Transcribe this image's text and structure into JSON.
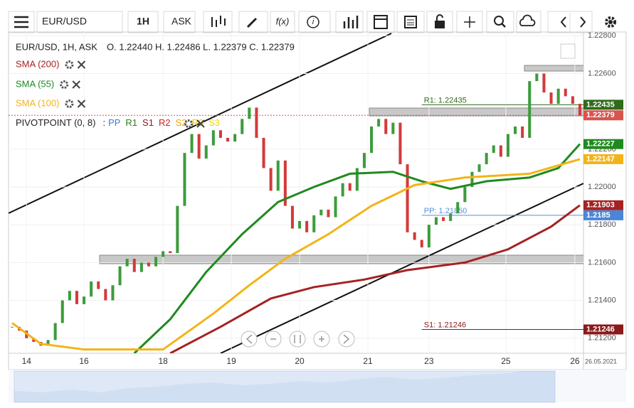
{
  "toolbar": {
    "symbol": "EUR/USD",
    "interval": "1H",
    "side": "ASK",
    "function": "f(x)",
    "info": "i"
  },
  "legend": {
    "symbol": "EUR/USD, 1H, ASK",
    "ohlc": "O. 1.22440 H. 1.22486 L. 1.22379 C. 1.22379",
    "pivot": "PIVOTPOINT (0, 8)",
    "pivot_prefix": ":",
    "pivot_items": [
      {
        "label": "PP",
        "color": "#3a7bd5"
      },
      {
        "label": "R1",
        "color": "#2e7d1a"
      },
      {
        "label": "S1",
        "color": "#8b1a1a"
      },
      {
        "label": "R2",
        "color": "#d62020"
      },
      {
        "label": "S2",
        "color": "#f0a000"
      },
      {
        "label": "R3",
        "color": "#f0c800"
      },
      {
        "label": "S3",
        "color": "#f0d800"
      }
    ]
  },
  "chart_data": {
    "type": "candlestick",
    "date_label": "26.05.2021",
    "up_color": "#3c9c3c",
    "down_color": "#d33a3a",
    "xlim": [
      -0.5,
      79.5
    ],
    "ylim": [
      1.2112,
      1.2282
    ],
    "xticks": [
      {
        "value": 2,
        "label": "14"
      },
      {
        "value": 10,
        "label": "16"
      },
      {
        "value": 21,
        "label": "18"
      },
      {
        "value": 30.5,
        "label": "19"
      },
      {
        "value": 40,
        "label": "20"
      },
      {
        "value": 49.5,
        "label": "21"
      },
      {
        "value": 58,
        "label": "23"
      },
      {
        "value": 68.7,
        "label": "25"
      },
      {
        "value": 78.3,
        "label": "26"
      }
    ],
    "yticks": [
      {
        "value": 1.228,
        "label": "1.22800"
      },
      {
        "value": 1.226,
        "label": "1.22600"
      },
      {
        "value": 1.222,
        "label": "1.22200"
      },
      {
        "value": 1.22,
        "label": "1.22000"
      },
      {
        "value": 1.218,
        "label": "1.21800"
      },
      {
        "value": 1.216,
        "label": "1.21600"
      },
      {
        "value": 1.214,
        "label": "1.21400"
      },
      {
        "value": 1.212,
        "label": "1.21200"
      }
    ],
    "close": [
      1.2126,
      1.2124,
      1.212,
      1.2118,
      1.2116,
      1.2119,
      1.2128,
      1.214,
      1.2145,
      1.2138,
      1.2142,
      1.215,
      1.2146,
      1.214,
      1.2148,
      1.2158,
      1.2162,
      1.2155,
      1.216,
      1.2158,
      1.2163,
      1.2166,
      1.2165,
      1.219,
      1.2218,
      1.2228,
      1.2215,
      1.2222,
      1.223,
      1.2226,
      1.2224,
      1.2228,
      1.2236,
      1.2242,
      1.2226,
      1.221,
      1.2198,
      1.2214,
      1.219,
      1.2178,
      1.2182,
      1.2176,
      1.2185,
      1.2188,
      1.2184,
      1.2195,
      1.2202,
      1.2198,
      1.221,
      1.2218,
      1.2232,
      1.2236,
      1.2228,
      1.2234,
      1.2212,
      1.2176,
      1.2172,
      1.2168,
      1.218,
      1.2184,
      1.2182,
      1.2186,
      1.2192,
      1.22,
      1.2208,
      1.2212,
      1.2218,
      1.2222,
      1.2216,
      1.2228,
      1.2232,
      1.2226,
      1.2256,
      1.226,
      1.225,
      1.2244,
      1.2252,
      1.2248,
      1.2244,
      1.22379
    ],
    "series": [
      {
        "name": "SMA (200)",
        "color": "#a52222",
        "x": [
          22,
          29,
          36,
          42,
          49,
          55,
          63,
          69,
          75,
          79
        ],
        "values": [
          1.2112,
          1.2126,
          1.2141,
          1.2147,
          1.2151,
          1.2156,
          1.216,
          1.2167,
          1.2179,
          1.21903
        ]
      },
      {
        "name": "SMA (55)",
        "color": "#1f8a1f",
        "x": [
          17,
          22,
          27,
          32,
          37,
          42,
          47,
          53,
          57,
          61,
          66,
          72,
          76,
          79
        ],
        "values": [
          1.2112,
          1.213,
          1.2155,
          1.2175,
          1.2192,
          1.22,
          1.2207,
          1.2208,
          1.2203,
          1.2199,
          1.2203,
          1.2205,
          1.221,
          1.22227
        ]
      },
      {
        "name": "SMA (100)",
        "color": "#f2b418",
        "x": [
          0,
          4,
          10,
          21,
          28,
          33,
          38,
          44,
          50,
          56,
          63,
          72,
          79
        ],
        "values": [
          1.2128,
          1.2117,
          1.2114,
          1.2114,
          1.2133,
          1.2148,
          1.2162,
          1.2175,
          1.219,
          1.2201,
          1.2205,
          1.2207,
          1.22147
        ]
      }
    ],
    "pivots": [
      {
        "label": "R1: 1.22435",
        "value": 1.22435,
        "color": "#2e6b1a",
        "from": 57
      },
      {
        "label": "PP: 1.21850",
        "value": 1.2185,
        "color": "#5b8fd8",
        "from": 57
      },
      {
        "label": "S1: 1.21246",
        "value": 1.21246,
        "color": "#8b1a1a",
        "from": 57
      }
    ],
    "badges": [
      {
        "value": 1.22435,
        "color": "#2e6b1a"
      },
      {
        "value": 1.22379,
        "color": "#d9534f"
      },
      {
        "value": 1.22227,
        "color": "#1f8a1f"
      },
      {
        "value": 1.22147,
        "color": "#f2b418"
      },
      {
        "value": 1.21903,
        "color": "#a52222"
      },
      {
        "value": 1.2185,
        "color": "#4a86d8"
      },
      {
        "value": 1.21246,
        "color": "#8b1a1a"
      }
    ]
  }
}
